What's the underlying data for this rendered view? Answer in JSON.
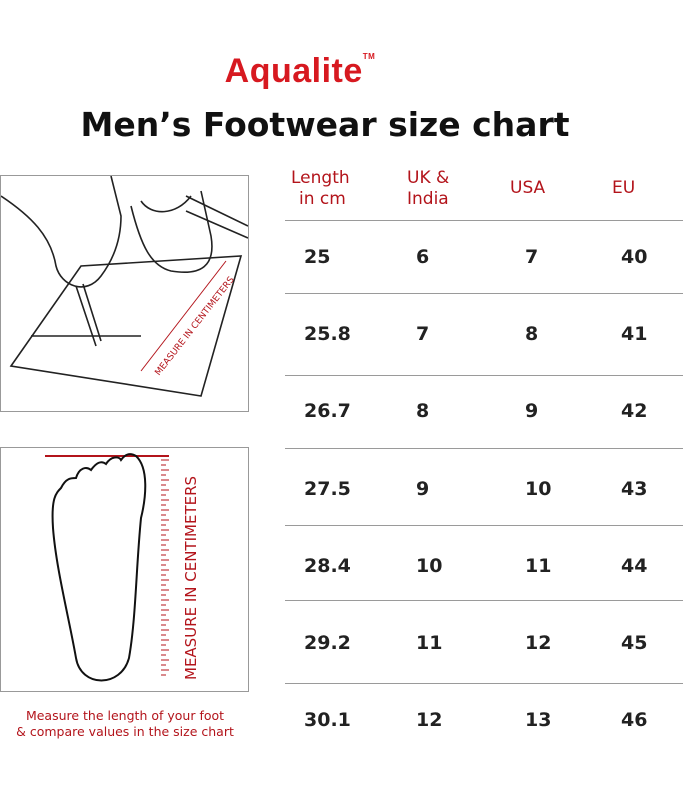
{
  "brand": {
    "name": "Aqualite",
    "mark": "TM",
    "color": "#d71920"
  },
  "title": "Men’s Footwear size chart",
  "table": {
    "headers": [
      [
        "Length",
        "in cm"
      ],
      [
        "UK &",
        "India"
      ],
      [
        "USA"
      ],
      [
        "EU"
      ]
    ],
    "rows": [
      [
        "25",
        "6",
        "7",
        "40"
      ],
      [
        "25.8",
        "7",
        "8",
        "41"
      ],
      [
        "26.7",
        "8",
        "9",
        "42"
      ],
      [
        "27.5",
        "9",
        "10",
        "43"
      ],
      [
        "28.4",
        "10",
        "11",
        "44"
      ],
      [
        "29.2",
        "11",
        "12",
        "45"
      ],
      [
        "30.1",
        "12",
        "13",
        "46"
      ]
    ]
  },
  "illustration": {
    "top_ruler_label": "MEASURE IN CENTIMETERS",
    "bottom_ruler_label": "MEASURE IN CENTIMETERS",
    "caption_line1": "Measure the length of your foot",
    "caption_line2": "& compare values in the size chart",
    "accent_color": "#b3141b"
  }
}
